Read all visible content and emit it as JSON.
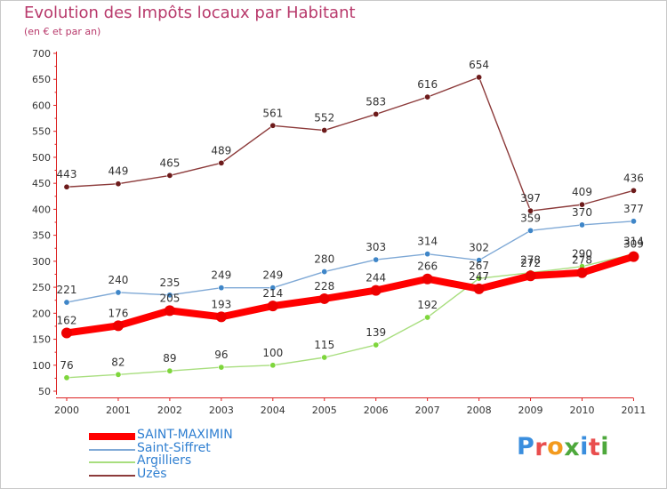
{
  "title": "Evolution des Impôts locaux par Habitant",
  "subtitle": "(en € et par an)",
  "brand": {
    "text": "Proxiti",
    "letter_colors": [
      "#3a8ede",
      "#e94e4e",
      "#f39a1d",
      "#4ea83c",
      "#3a8ede",
      "#e94e4e",
      "#4ea83c"
    ]
  },
  "chart_data": {
    "type": "line",
    "title": "Evolution des Impôts locaux par Habitant",
    "subtitle": "(en € et par an)",
    "xlabel": "",
    "ylabel": "",
    "x": [
      "2000",
      "2001",
      "2002",
      "2003",
      "2004",
      "2005",
      "2006",
      "2007",
      "2008",
      "2009",
      "2010",
      "2011"
    ],
    "ylim": [
      50,
      700
    ],
    "yticks": [
      50,
      100,
      150,
      200,
      250,
      300,
      350,
      400,
      450,
      500,
      550,
      600,
      650,
      700
    ],
    "grid": false,
    "legend_position": "bottom-left",
    "series": [
      {
        "name": "SAINT-MAXIMIN",
        "color": "#ff0000",
        "point_color": "#ee0000",
        "values": [
          162,
          176,
          205,
          193,
          214,
          228,
          244,
          266,
          247,
          272,
          278,
          309
        ]
      },
      {
        "name": "Saint-Siffret",
        "color": "#7fa9d6",
        "point_color": "#3f86c8",
        "values": [
          221,
          240,
          235,
          249,
          249,
          280,
          303,
          314,
          302,
          359,
          370,
          377
        ]
      },
      {
        "name": "Argilliers",
        "color": "#a8de7e",
        "point_color": "#7ed63c",
        "values": [
          76,
          82,
          89,
          96,
          100,
          115,
          139,
          192,
          267,
          278,
          290,
          314
        ]
      },
      {
        "name": "Uzès",
        "color": "#8c3a3a",
        "point_color": "#6d1b1b",
        "values": [
          443,
          449,
          465,
          489,
          561,
          552,
          583,
          616,
          654,
          397,
          409,
          436
        ]
      }
    ]
  }
}
